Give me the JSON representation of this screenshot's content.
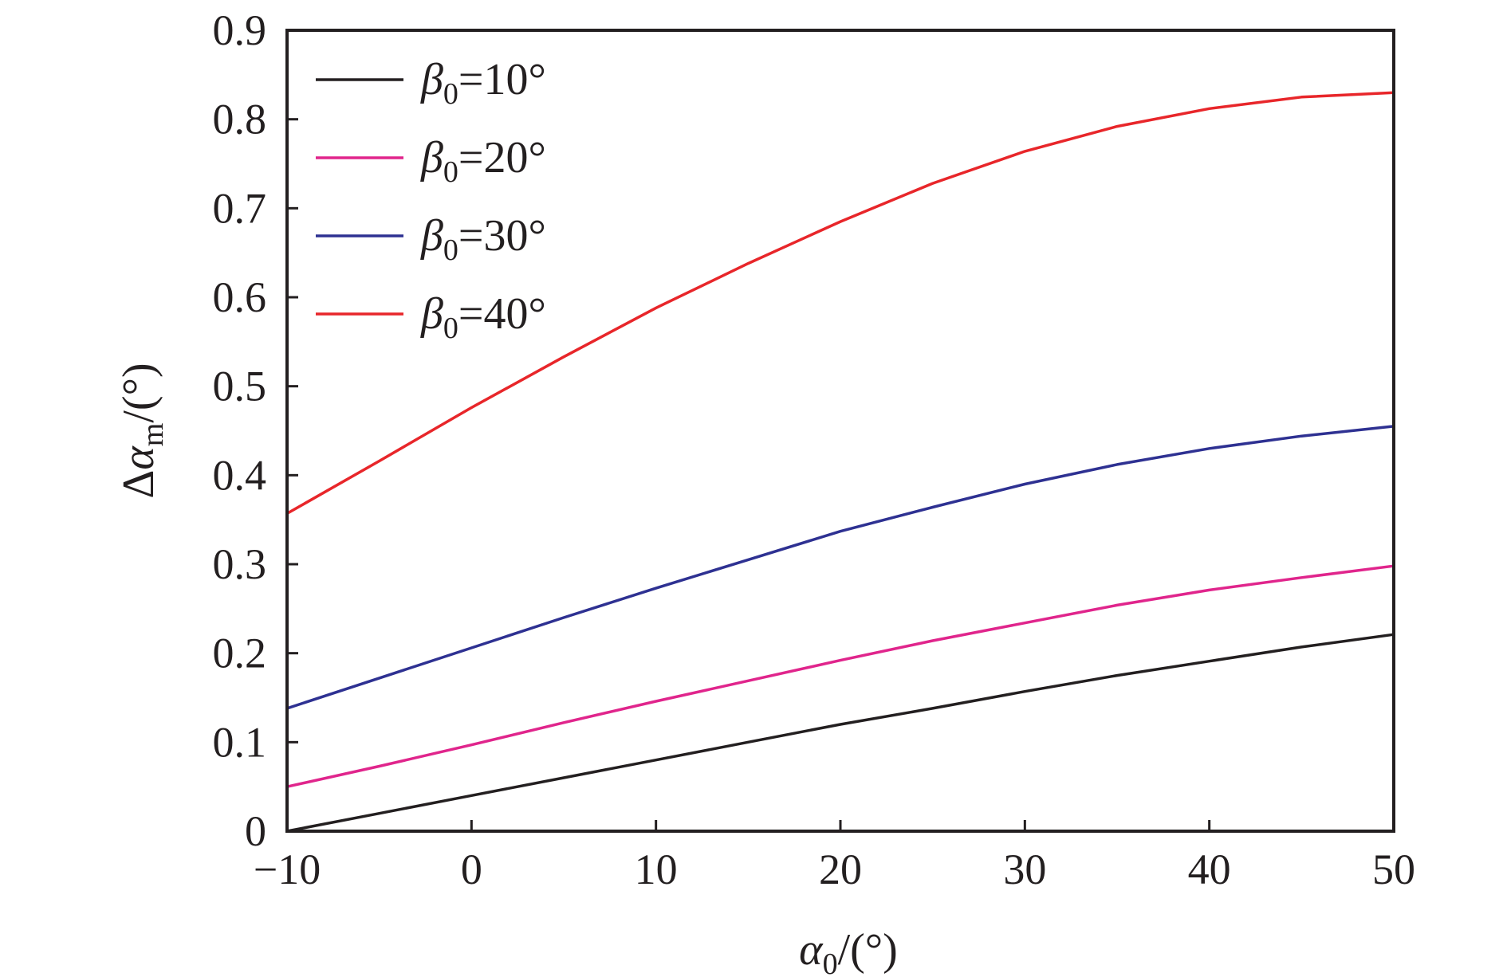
{
  "chart_data": {
    "type": "line",
    "title": "",
    "xlabel": "α0/(°)",
    "ylabel": "Δαm/(°)",
    "xlabel_parts": {
      "sym": "α",
      "sub": "0",
      "rest": "/(°)"
    },
    "ylabel_parts": {
      "pre": "Δ",
      "sym": "α",
      "sub": "m",
      "rest": "/(°)"
    },
    "xlim": [
      -10,
      50
    ],
    "ylim": [
      0,
      0.9
    ],
    "xticks": [
      -10,
      0,
      10,
      20,
      30,
      40,
      50
    ],
    "xtick_labels": [
      "−10",
      "0",
      "10",
      "20",
      "30",
      "40",
      "50"
    ],
    "yticks": [
      0,
      0.1,
      0.2,
      0.3,
      0.4,
      0.5,
      0.6,
      0.7,
      0.8,
      0.9
    ],
    "ytick_labels": [
      "0",
      "0.1",
      "0.2",
      "0.3",
      "0.4",
      "0.5",
      "0.6",
      "0.7",
      "0.8",
      "0.9"
    ],
    "grid": false,
    "legend_position": "top-left",
    "x": [
      -10,
      -5,
      0,
      5,
      10,
      15,
      20,
      25,
      30,
      35,
      40,
      45,
      50
    ],
    "series": [
      {
        "name": "β0=10°",
        "label_parts": {
          "sym": "β",
          "sub": "0",
          "rest": "=10°"
        },
        "color": "#231f20",
        "values": [
          0.0,
          0.02,
          0.04,
          0.06,
          0.08,
          0.1,
          0.12,
          0.138,
          0.157,
          0.175,
          0.191,
          0.207,
          0.221
        ]
      },
      {
        "name": "β0=20°",
        "label_parts": {
          "sym": "β",
          "sub": "0",
          "rest": "=20°"
        },
        "color": "#e0258c",
        "values": [
          0.05,
          0.073,
          0.097,
          0.122,
          0.146,
          0.169,
          0.192,
          0.214,
          0.234,
          0.254,
          0.271,
          0.285,
          0.298
        ]
      },
      {
        "name": "β0=30°",
        "label_parts": {
          "sym": "β",
          "sub": "0",
          "rest": "=30°"
        },
        "color": "#2e3192",
        "values": [
          0.138,
          0.172,
          0.206,
          0.24,
          0.273,
          0.305,
          0.337,
          0.364,
          0.39,
          0.412,
          0.43,
          0.444,
          0.455
        ]
      },
      {
        "name": "β0=40°",
        "label_parts": {
          "sym": "β",
          "sub": "0",
          "rest": "=40°"
        },
        "color": "#e8262a",
        "values": [
          0.357,
          0.416,
          0.476,
          0.533,
          0.588,
          0.638,
          0.685,
          0.728,
          0.764,
          0.792,
          0.812,
          0.825,
          0.83
        ]
      }
    ]
  }
}
